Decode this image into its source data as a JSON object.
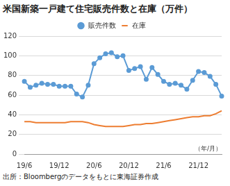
{
  "chart_data": {
    "type": "line",
    "title": "米国新築一戸建て住宅販売件数と在庫（万件）",
    "xlabel": "（年/月）",
    "source": "出所：Bloombergのデータをもとに東海証券作成",
    "categories": [
      "19/6",
      null,
      null,
      null,
      null,
      null,
      "19/12",
      null,
      null,
      null,
      null,
      null,
      "20/6",
      null,
      null,
      null,
      null,
      null,
      "20/12",
      null,
      null,
      null,
      null,
      null,
      "21/6",
      null,
      null,
      null,
      null,
      null,
      "21/12",
      null,
      null,
      null,
      null
    ],
    "series": [
      {
        "name": "販売件数",
        "color": "#5b9bd5",
        "marker": "circle",
        "values": [
          74,
          68,
          70,
          72,
          71,
          71,
          69,
          69,
          69,
          61,
          58,
          70,
          92,
          98,
          102,
          103,
          99,
          100,
          85,
          87,
          89,
          76,
          88,
          81,
          74,
          71,
          72,
          70,
          66,
          75,
          84,
          83,
          79,
          71,
          59
        ]
      },
      {
        "name": "在庫",
        "color": "#ed7d31",
        "marker": "none",
        "values": [
          33,
          33,
          32,
          32,
          32,
          32,
          32,
          32,
          33,
          33,
          33,
          32,
          30,
          29,
          28,
          28,
          28,
          28,
          29,
          30,
          30,
          31,
          31,
          32,
          33,
          34,
          35,
          36,
          37,
          38,
          38,
          39,
          39,
          41,
          44
        ]
      }
    ],
    "ylim": [
      0,
      120
    ],
    "yticks": [
      0,
      20,
      40,
      60,
      80,
      100,
      120
    ],
    "grid": true,
    "legend": "top"
  }
}
